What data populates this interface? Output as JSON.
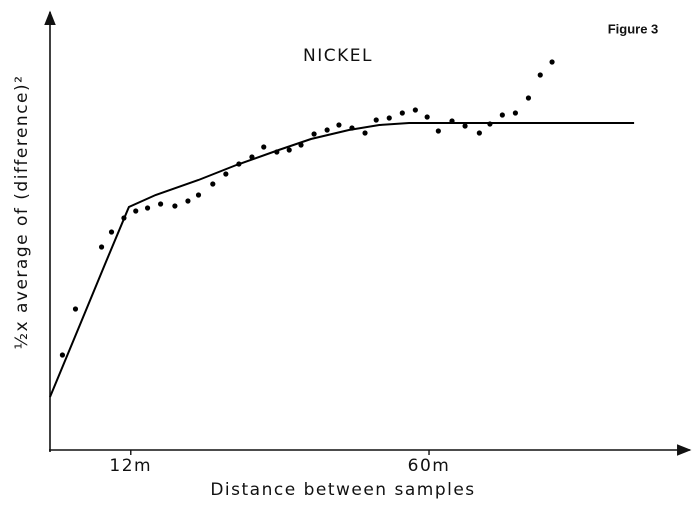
{
  "chart_data": {
    "type": "scatter",
    "figure_label": "Figure 3",
    "title": "NICKEL",
    "x_label": "Distance between samples",
    "y_label": "½x  average of (difference)²",
    "xlim": [
      -1,
      102
    ],
    "ylim": [
      0,
      44
    ],
    "xticks": [
      {
        "value": 12,
        "label": "12m"
      },
      {
        "value": 60,
        "label": "60m"
      }
    ],
    "series": [
      {
        "style": "markers",
        "color": "#000000",
        "x": [
          1.0,
          3.1,
          7.3,
          8.9,
          10.9,
          12.8,
          14.7,
          16.8,
          19.1,
          21.2,
          22.9,
          25.2,
          27.3,
          29.4,
          31.5,
          33.4,
          35.5,
          37.5,
          39.4,
          41.5,
          43.6,
          45.5,
          47.6,
          49.7,
          51.5,
          53.6,
          55.7,
          57.8,
          59.7,
          61.5,
          63.7,
          65.8,
          68.1,
          69.8,
          71.8,
          73.9,
          76.0,
          77.9,
          79.8
        ],
        "values": [
          9.5,
          14.1,
          20.3,
          21.8,
          23.2,
          23.9,
          24.2,
          24.6,
          24.4,
          24.9,
          25.5,
          26.6,
          27.6,
          28.6,
          29.3,
          30.3,
          29.8,
          30.0,
          30.5,
          31.6,
          32.0,
          32.5,
          32.2,
          31.7,
          33.0,
          33.2,
          33.7,
          34.0,
          33.3,
          31.9,
          32.9,
          32.4,
          31.7,
          32.6,
          33.5,
          33.7,
          35.2,
          37.5,
          38.8
        ]
      },
      {
        "style": "line",
        "color": "#000000",
        "x": [
          -1,
          4,
          8,
          11.7,
          16,
          22.9,
          29,
          35.8,
          41,
          47.1,
          52,
          56.8,
          65,
          93
        ],
        "values": [
          5.3,
          12.8,
          18.8,
          24.3,
          25.5,
          27.0,
          28.5,
          30.0,
          31.1,
          32.0,
          32.5,
          32.7,
          32.7,
          32.7
        ]
      }
    ]
  }
}
